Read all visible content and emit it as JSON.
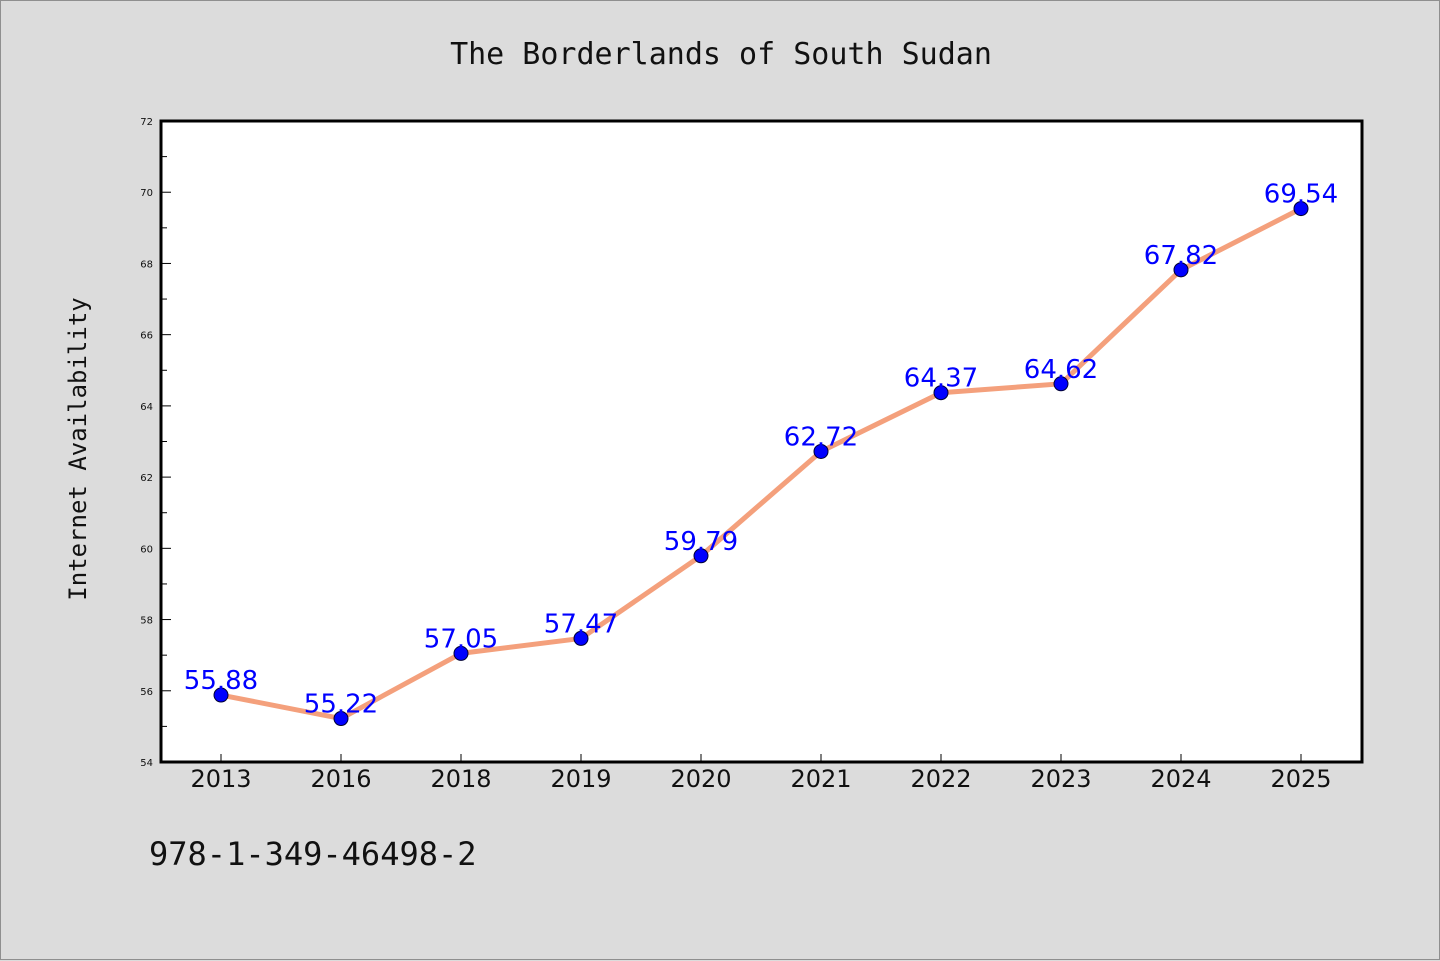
{
  "chart_data": {
    "type": "line",
    "title": "The Borderlands of South Sudan",
    "xlabel": "",
    "ylabel": "Internet Availability",
    "categories": [
      "2013",
      "2016",
      "2018",
      "2019",
      "2020",
      "2021",
      "2022",
      "2023",
      "2024",
      "2025"
    ],
    "values": [
      55.88,
      55.22,
      57.05,
      57.47,
      59.79,
      62.72,
      64.37,
      64.62,
      67.82,
      69.54
    ],
    "value_labels": [
      "55.88",
      "55.22",
      "57.05",
      "57.47",
      "59.79",
      "62.72",
      "64.37",
      "64.62",
      "67.82",
      "69.54"
    ],
    "ylim": [
      54,
      72
    ],
    "yticks": [
      "54",
      "56",
      "58",
      "60",
      "62",
      "64",
      "66",
      "68",
      "70",
      "72"
    ],
    "grid": false,
    "legend": "none"
  },
  "footer": {
    "code": "978-1-349-46498-2"
  },
  "colors": {
    "background": "#dcdcdc",
    "plot_background": "#ffffff",
    "line": "#f4a07c",
    "marker": "#0000ff",
    "data_label": "#0000ff",
    "axis": "#000000"
  }
}
